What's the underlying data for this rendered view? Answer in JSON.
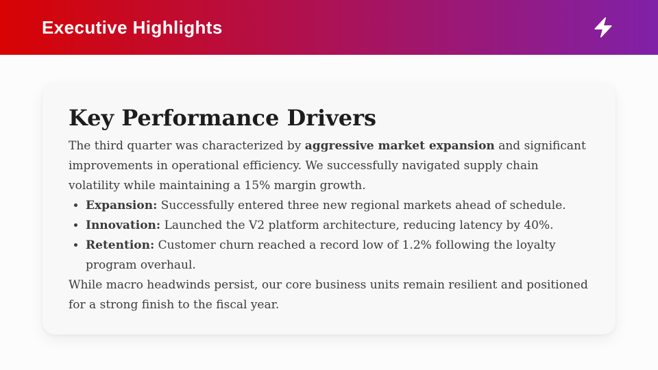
{
  "colors": {
    "header_gradient_start": "#d80302",
    "header_gradient_end": "#8021a8",
    "page_bg": "#fcfcfc",
    "card_bg": "#f8f8f8",
    "header_text": "#ffffff",
    "heading_color": "#1d1d1d",
    "body_color": "#3b3b3b"
  },
  "header": {
    "title": "Executive Highlights",
    "icon": "lightning-bolt-icon"
  },
  "card": {
    "heading": "Key Performance Drivers",
    "intro_segments": [
      {
        "text": "The third quarter was characterized by ",
        "bold": false
      },
      {
        "text": "aggressive market expansion",
        "bold": true
      },
      {
        "text": " and significant improvements in operational efficiency. We successfully navigated supply chain volatility while maintaining a 15% margin growth.",
        "bold": false
      }
    ],
    "bullets": [
      {
        "label": "Expansion:",
        "text": " Successfully entered three new regional markets ahead of schedule."
      },
      {
        "label": "Innovation:",
        "text": " Launched the V2 platform architecture, reducing latency by 40%."
      },
      {
        "label": "Retention:",
        "text": " Customer churn reached a record low of 1.2% following the loyalty program overhaul."
      }
    ],
    "outro": "While macro headwinds persist, our core business units remain resilient and positioned for a strong finish to the fiscal year."
  }
}
